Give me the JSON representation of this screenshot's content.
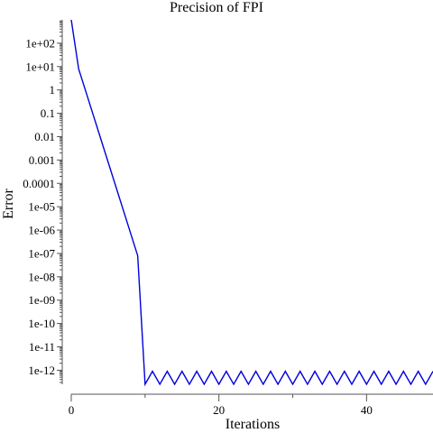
{
  "chart_data": {
    "type": "line",
    "title": "Precision of FPI",
    "xlabel": "Iterations",
    "ylabel": "Error",
    "y_scale": "log",
    "xlim": [
      0,
      49
    ],
    "ylim": [
      2.5e-13,
      1000
    ],
    "grid": false,
    "line_color": "#0000dd",
    "x_ticks": [
      {
        "value": 0,
        "label": "0"
      },
      {
        "value": 20,
        "label": "20"
      },
      {
        "value": 40,
        "label": "40"
      }
    ],
    "x_minor_ticks": [
      10,
      30
    ],
    "y_ticks": [
      {
        "value": 100.0,
        "label": "1e+02"
      },
      {
        "value": 10.0,
        "label": "1e+01"
      },
      {
        "value": 1,
        "label": "1"
      },
      {
        "value": 0.1,
        "label": "0.1"
      },
      {
        "value": 0.01,
        "label": "0.01"
      },
      {
        "value": 0.001,
        "label": "0.001"
      },
      {
        "value": 0.0001,
        "label": "0.0001"
      },
      {
        "value": 1e-05,
        "label": "1e-05"
      },
      {
        "value": 1e-06,
        "label": "1e-06"
      },
      {
        "value": 1e-07,
        "label": "1e-07"
      },
      {
        "value": 1e-08,
        "label": "1e-08"
      },
      {
        "value": 1e-09,
        "label": "1e-09"
      },
      {
        "value": 1e-10,
        "label": "1e-10"
      },
      {
        "value": 1e-11,
        "label": "1e-11"
      },
      {
        "value": 1e-12,
        "label": "1e-12"
      }
    ],
    "series": [
      {
        "x": [
          0,
          1,
          2,
          3,
          4,
          5,
          6,
          7,
          8,
          9,
          10,
          11,
          12,
          13,
          14,
          15,
          16,
          17,
          18,
          19,
          20,
          21,
          22,
          23,
          24,
          25,
          26,
          27,
          28,
          29,
          30,
          31,
          32,
          33,
          34,
          35,
          36,
          37,
          38,
          39,
          40,
          41,
          42,
          43,
          44,
          45,
          46,
          47,
          48,
          49
        ],
        "y": [
          1000,
          8,
          0.8,
          0.08,
          0.008,
          0.0008,
          8e-05,
          8e-06,
          8e-07,
          8e-08,
          2.5e-13,
          9e-13,
          2.5e-13,
          9e-13,
          2.5e-13,
          9e-13,
          2.5e-13,
          9e-13,
          2.5e-13,
          9e-13,
          2.5e-13,
          9e-13,
          2.5e-13,
          9e-13,
          2.5e-13,
          9e-13,
          2.5e-13,
          9e-13,
          2.5e-13,
          9e-13,
          2.5e-13,
          9e-13,
          2.5e-13,
          9e-13,
          2.5e-13,
          9e-13,
          2.5e-13,
          9e-13,
          2.5e-13,
          9e-13,
          2.5e-13,
          9e-13,
          2.5e-13,
          9e-13,
          2.5e-13,
          9e-13,
          2.5e-13,
          9e-13,
          2.5e-13,
          9e-13
        ]
      }
    ]
  }
}
